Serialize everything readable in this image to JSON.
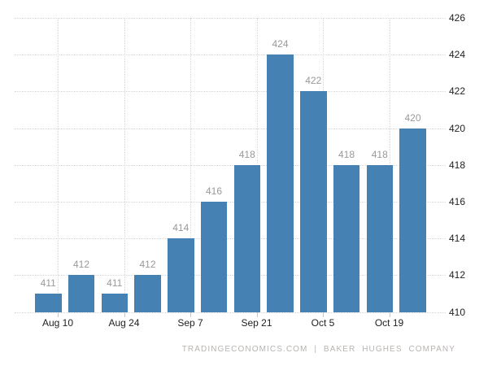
{
  "chart_data": {
    "type": "bar",
    "title": "",
    "values": [
      411,
      412,
      411,
      412,
      414,
      416,
      418,
      424,
      422,
      418,
      418,
      420
    ],
    "bar_value_labels": [
      "411",
      "412",
      "411",
      "412",
      "414",
      "416",
      "418",
      "424",
      "422",
      "418",
      "418",
      "420"
    ],
    "xtick_labels": [
      "Aug 10",
      "Aug 24",
      "Sep 7",
      "Sep 21",
      "Oct 5",
      "Oct 19"
    ],
    "ytick_labels": [
      426,
      424,
      422,
      420,
      418,
      416,
      414,
      412,
      410
    ],
    "ylim": [
      410,
      426
    ],
    "grid": "dotted, horizontal and vertical, y-axis labels on right side",
    "legend": "none",
    "attribution": "TRADINGECONOMICS.COM | BAKER HUGHES COMPANY",
    "colors": {
      "bar": "#4581b2",
      "gridline": "#d6d6d6",
      "tick_mark": "#c6c6c6",
      "axis_label": "#222222",
      "value_label": "#999999",
      "attribution": "#b8b4b0",
      "background": "#ffffff"
    }
  }
}
